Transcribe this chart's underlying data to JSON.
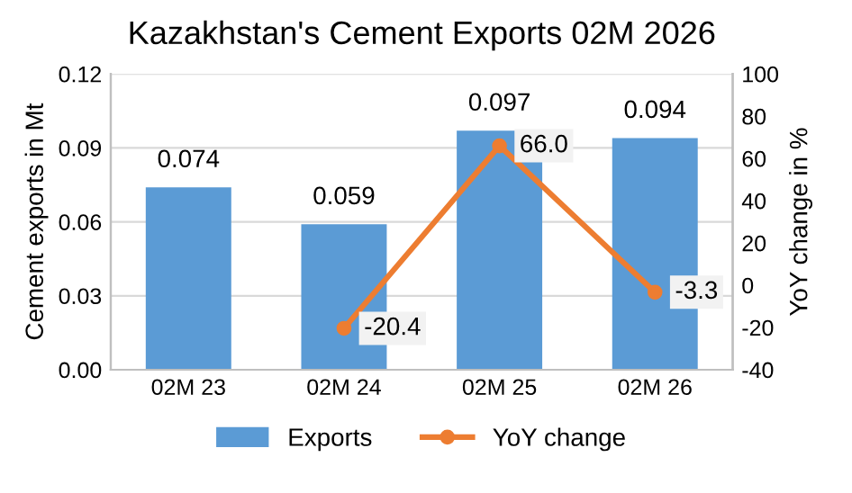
{
  "chart_data": {
    "type": "bar",
    "title": "Kazakhstan's Cement Exports 02M 2026",
    "ylabel": "Cement exports in Mt",
    "y2label": "YoY change in %",
    "categories": [
      "02M 23",
      "02M 24",
      "02M 25",
      "02M 26"
    ],
    "series": [
      {
        "name": "Exports",
        "color": "#5b9bd5",
        "values": [
          0.074,
          0.059,
          0.097,
          0.094
        ],
        "value_labels": [
          "0.074",
          "0.059",
          "0.097",
          "0.094"
        ]
      },
      {
        "name": "YoY change",
        "type": "line",
        "axis": "y2",
        "color": "#ed7d31",
        "marker": "circle",
        "values": [
          null,
          -20.4,
          66.0,
          -3.3
        ],
        "value_labels": [
          null,
          "-20.4",
          "66.0",
          "-3.3"
        ]
      }
    ],
    "ylim": [
      0,
      0.12
    ],
    "yticks": [
      {
        "value": 0,
        "label": "0.00"
      },
      {
        "value": 0.03,
        "label": "0.03"
      },
      {
        "value": 0.06,
        "label": "0.06"
      },
      {
        "value": 0.09,
        "label": "0.09"
      },
      {
        "value": 0.12,
        "label": "0.12"
      }
    ],
    "y2lim": [
      -40,
      100
    ],
    "y2ticks": [
      -40,
      -20,
      0,
      20,
      40,
      60,
      80,
      100
    ],
    "grid": "y",
    "legend": "bottom"
  }
}
